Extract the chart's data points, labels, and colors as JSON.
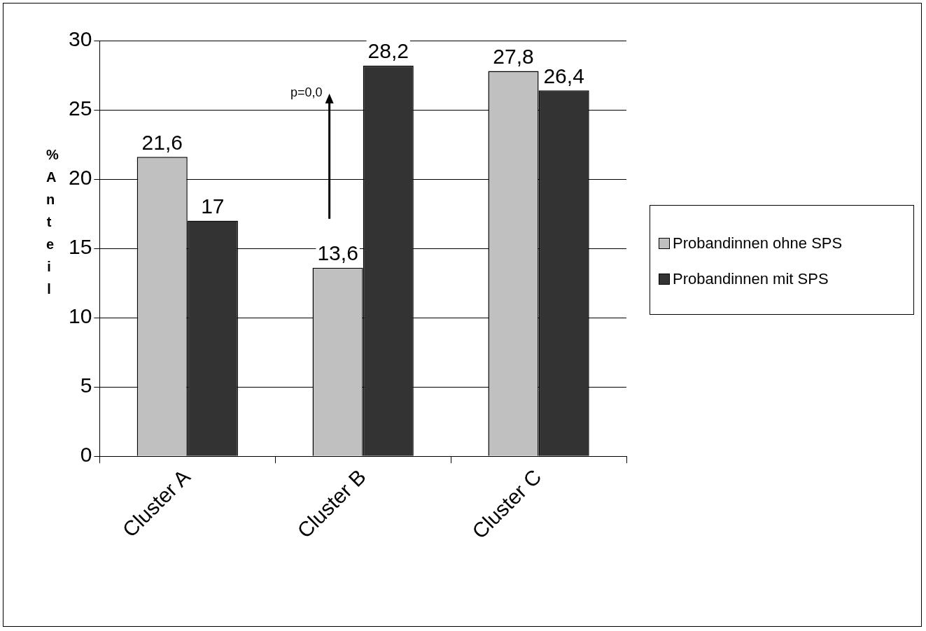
{
  "chart_data": {
    "type": "bar",
    "ylabel": "% Anteil",
    "categories": [
      "Cluster A",
      "Cluster B",
      "Cluster C"
    ],
    "series": [
      {
        "name": "Probandinnen ohne SPS",
        "color": "#c0c0c0",
        "values": [
          21.6,
          13.6,
          27.8
        ],
        "value_labels": [
          "21,6",
          "13,6",
          "27,8"
        ]
      },
      {
        "name": "Probandinnen mit SPS",
        "color": "#333333",
        "values": [
          17,
          28.2,
          26.4
        ],
        "value_labels": [
          "17",
          "28,2",
          "26,4"
        ]
      }
    ],
    "ylim": [
      0,
      30
    ],
    "yticks": [
      0,
      5,
      10,
      15,
      20,
      25,
      30
    ],
    "grid": "y",
    "legend": "right",
    "annotations": [
      "p=0,0"
    ]
  }
}
